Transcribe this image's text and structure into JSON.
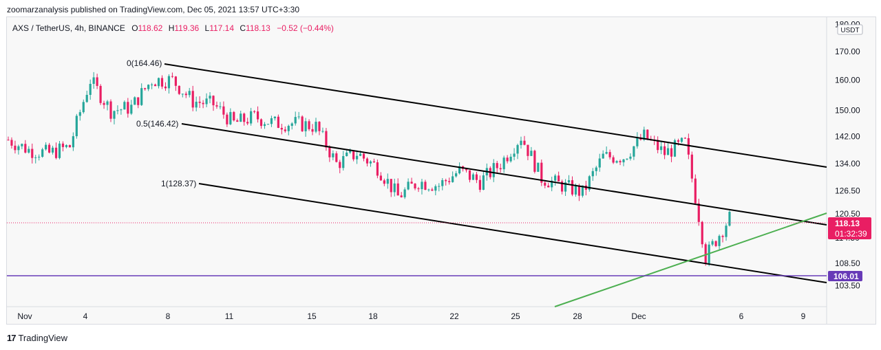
{
  "header": {
    "publisher_line": "zoomarzanalysis published on TradingView.com, Dec 05, 2021 13:57 UTC+3:30"
  },
  "legend": {
    "symbol": "AXS / TetherUS, 4h, BINANCE",
    "o_label": "O",
    "o": "118.62",
    "h_label": "H",
    "h": "119.36",
    "l_label": "L",
    "l": "117.14",
    "c_label": "C",
    "c": "118.13",
    "change": "−0.52 (−0.44%)"
  },
  "axis": {
    "currency": "USDT",
    "y_ticks": [
      "180.00",
      "170.00",
      "160.00",
      "150.00",
      "142.00",
      "134.00",
      "126.50",
      "120.50",
      "114.50",
      "108.50",
      "103.50"
    ],
    "x_ticks": [
      "Nov",
      "4",
      "8",
      "11",
      "15",
      "18",
      "22",
      "25",
      "28",
      "Dec",
      "6",
      "9"
    ]
  },
  "price_tag": {
    "value": "118.13",
    "countdown": "01:32:39"
  },
  "line_tag": {
    "value": "106.01"
  },
  "fib_labels": [
    "0(164.46)",
    "0.5(146.42)",
    "1(128.37)"
  ],
  "footer": {
    "brand": "TradingView",
    "logo_glyph": "17"
  },
  "colors": {
    "up": "#26a69a",
    "down": "#e91e63",
    "channel": "#000000",
    "trend": "#4caf50",
    "horizontal": "#673ab7",
    "price_tag": "#e91e63"
  },
  "chart_data": {
    "type": "candlestick",
    "symbol": "AXS / TetherUS",
    "interval": "4h",
    "y_scale": "log",
    "ylim": [
      99,
      182
    ],
    "x_ticks": [
      "Nov",
      "4",
      "8",
      "11",
      "15",
      "18",
      "22",
      "25",
      "28",
      "Dec",
      "6",
      "9"
    ],
    "last_close": 118.13,
    "horizontal_line": 106.01,
    "fib_channel": [
      {
        "level": "0",
        "price": 164.46
      },
      {
        "level": "0.5",
        "price": 146.42
      },
      {
        "level": "1",
        "price": 128.37
      }
    ],
    "trend_line": "rising green line from lower-middle to upper-right",
    "anchors": [
      {
        "date": "Oct 31",
        "close": 141
      },
      {
        "date": "Nov 1",
        "close": 138
      },
      {
        "date": "Nov 2",
        "close": 137
      },
      {
        "date": "Nov 3",
        "close": 139
      },
      {
        "date": "Nov 4",
        "close": 160
      },
      {
        "date": "Nov 5",
        "close": 150
      },
      {
        "date": "Nov 6",
        "close": 151
      },
      {
        "date": "Nov 7",
        "close": 160
      },
      {
        "date": "Nov 8",
        "close": 160
      },
      {
        "date": "Nov 9",
        "close": 153
      },
      {
        "date": "Nov 10",
        "close": 152
      },
      {
        "date": "Nov 11",
        "close": 146
      },
      {
        "date": "Nov 12",
        "close": 148
      },
      {
        "date": "Nov 13",
        "close": 146
      },
      {
        "date": "Nov 14",
        "close": 146
      },
      {
        "date": "Nov 15",
        "close": 145
      },
      {
        "date": "Nov 16",
        "close": 134
      },
      {
        "date": "Nov 17",
        "close": 137
      },
      {
        "date": "Nov 18",
        "close": 133
      },
      {
        "date": "Nov 19",
        "close": 125
      },
      {
        "date": "Nov 20",
        "close": 129
      },
      {
        "date": "Nov 21",
        "close": 128
      },
      {
        "date": "Nov 22",
        "close": 132
      },
      {
        "date": "Nov 23",
        "close": 129
      },
      {
        "date": "Nov 24",
        "close": 134
      },
      {
        "date": "Nov 25",
        "close": 142
      },
      {
        "date": "Nov 26",
        "close": 130
      },
      {
        "date": "Nov 27",
        "close": 128
      },
      {
        "date": "Nov 28",
        "close": 126
      },
      {
        "date": "Nov 29",
        "close": 136
      },
      {
        "date": "Nov 30",
        "close": 136
      },
      {
        "date": "Dec 1",
        "close": 142
      },
      {
        "date": "Dec 2",
        "close": 137
      },
      {
        "date": "Dec 3",
        "close": 140
      },
      {
        "date": "Dec 4",
        "close": 110
      },
      {
        "date": "Dec 5",
        "close": 118.13
      }
    ]
  }
}
